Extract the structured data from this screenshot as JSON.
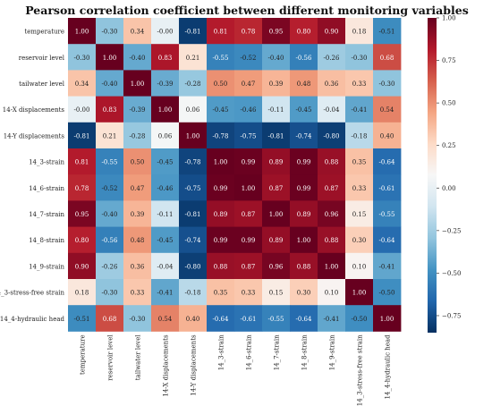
{
  "chart_data": {
    "type": "heatmap",
    "title": "Pearson correlation coefficient between different monitoring variables",
    "xlabel": "",
    "ylabel": "",
    "labels": [
      "temperature",
      "reservoir level",
      "tailwater level",
      "14-X displacements",
      "14-Y displacements",
      "14_3-strain",
      "14_6-strain",
      "14_7-strain",
      "14_8-strain",
      "14_9-strain",
      "14_3-stress-free strain",
      "14_4-hydraulic head"
    ],
    "cell_labels": [
      [
        "1.00",
        "-0.30",
        "0.34",
        "-0.00",
        "-0.81",
        "0.81",
        "0.78",
        "0.95",
        "0.80",
        "0.90",
        "0.18",
        "-0.51"
      ],
      [
        "-0.30",
        "1.00",
        "-0.40",
        "0.83",
        "0.21",
        "-0.55",
        "-0.52",
        "-0.40",
        "-0.56",
        "-0.26",
        "-0.30",
        "0.68"
      ],
      [
        "0.34",
        "-0.40",
        "1.00",
        "-0.39",
        "-0.28",
        "0.50",
        "0.47",
        "0.39",
        "0.48",
        "0.36",
        "0.33",
        "-0.30"
      ],
      [
        "-0.00",
        "0.83",
        "-0.39",
        "1.00",
        "0.06",
        "-0.45",
        "-0.46",
        "-0.11",
        "-0.45",
        "-0.04",
        "-0.41",
        "0.54"
      ],
      [
        "-0.81",
        "0.21",
        "-0.28",
        "0.06",
        "1.00",
        "-0.78",
        "-0.75",
        "-0.81",
        "-0.74",
        "-0.80",
        "-0.18",
        "0.40"
      ],
      [
        "0.81",
        "-0.55",
        "0.50",
        "-0.45",
        "-0.78",
        "1.00",
        "0.99",
        "0.89",
        "0.99",
        "0.88",
        "0.35",
        "-0.64"
      ],
      [
        "0.78",
        "-0.52",
        "0.47",
        "-0.46",
        "-0.75",
        "0.99",
        "1.00",
        "0.87",
        "0.99",
        "0.87",
        "0.33",
        "-0.61"
      ],
      [
        "0.95",
        "-0.40",
        "0.39",
        "-0.11",
        "-0.81",
        "0.89",
        "0.87",
        "1.00",
        "0.89",
        "0.96",
        "0.15",
        "-0.55"
      ],
      [
        "0.80",
        "-0.56",
        "0.48",
        "-0.45",
        "-0.74",
        "0.99",
        "0.99",
        "0.89",
        "1.00",
        "0.88",
        "0.30",
        "-0.64"
      ],
      [
        "0.90",
        "-0.26",
        "0.36",
        "-0.04",
        "-0.80",
        "0.88",
        "0.87",
        "0.96",
        "0.88",
        "1.00",
        "0.10",
        "-0.41"
      ],
      [
        "0.18",
        "-0.30",
        "0.33",
        "-0.41",
        "-0.18",
        "0.35",
        "0.33",
        "0.15",
        "0.30",
        "0.10",
        "1.00",
        "-0.50"
      ],
      [
        "-0.51",
        "0.68",
        "-0.30",
        "0.54",
        "0.40",
        "-0.64",
        "-0.61",
        "-0.55",
        "-0.64",
        "-0.41",
        "-0.50",
        "1.00"
      ]
    ],
    "colorbar": {
      "range": [
        -0.85,
        1.0
      ],
      "ticks": [
        1.0,
        0.75,
        0.5,
        0.25,
        0.0,
        -0.25,
        -0.5,
        -0.75
      ],
      "tick_labels": [
        "1.00",
        "0.75",
        "0.50",
        "0.25",
        "0.00",
        "−0.25",
        "−0.50",
        "−0.75"
      ]
    },
    "colormap": [
      "#053061",
      "#2166ac",
      "#4393c3",
      "#92c5de",
      "#d1e5f0",
      "#f7f7f7",
      "#fddbc7",
      "#f4a582",
      "#d6604d",
      "#b2182b",
      "#67001f"
    ],
    "grid": false,
    "legend": "none"
  }
}
